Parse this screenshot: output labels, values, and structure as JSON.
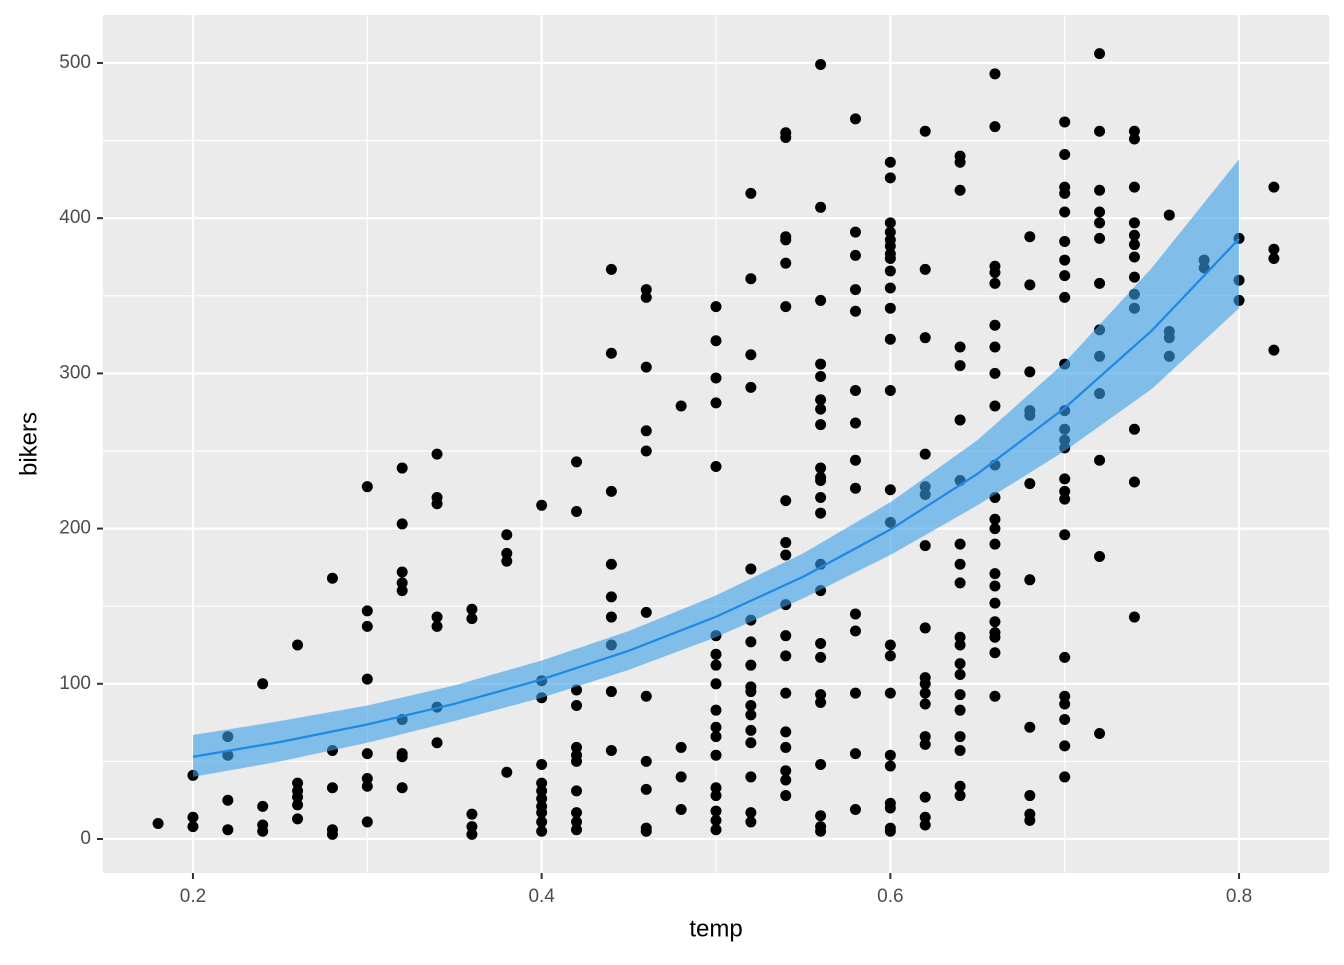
{
  "chart_data": {
    "type": "scatter",
    "x_label": "temp",
    "y_label": "bikers",
    "xlim": [
      0.1484,
      0.8516
    ],
    "ylim": [
      -21.9,
      530.9
    ],
    "xticks": [
      0.2,
      0.4,
      0.6,
      0.8
    ],
    "yticks": [
      0,
      100,
      200,
      300,
      400,
      500
    ],
    "grid": true,
    "point_color": "#000000",
    "x": [
      0.18,
      0.2,
      0.2,
      0.2,
      0.22,
      0.22,
      0.22,
      0.22,
      0.24,
      0.24,
      0.24,
      0.24,
      0.26,
      0.26,
      0.26,
      0.26,
      0.26,
      0.26,
      0.28,
      0.28,
      0.28,
      0.28,
      0.28,
      0.3,
      0.3,
      0.3,
      0.3,
      0.3,
      0.3,
      0.3,
      0.3,
      0.32,
      0.32,
      0.32,
      0.32,
      0.32,
      0.32,
      0.32,
      0.32,
      0.32,
      0.34,
      0.34,
      0.34,
      0.34,
      0.34,
      0.34,
      0.34,
      0.36,
      0.36,
      0.36,
      0.36,
      0.36,
      0.38,
      0.38,
      0.38,
      0.38,
      0.4,
      0.4,
      0.4,
      0.4,
      0.4,
      0.4,
      0.4,
      0.4,
      0.4,
      0.4,
      0.4,
      0.42,
      0.42,
      0.42,
      0.42,
      0.42,
      0.42,
      0.42,
      0.42,
      0.42,
      0.42,
      0.42,
      0.44,
      0.44,
      0.44,
      0.44,
      0.44,
      0.44,
      0.44,
      0.44,
      0.44,
      0.46,
      0.46,
      0.46,
      0.46,
      0.46,
      0.46,
      0.46,
      0.46,
      0.46,
      0.46,
      0.46,
      0.48,
      0.48,
      0.48,
      0.48,
      0.5,
      0.5,
      0.5,
      0.5,
      0.5,
      0.5,
      0.5,
      0.5,
      0.5,
      0.5,
      0.5,
      0.5,
      0.5,
      0.5,
      0.5,
      0.5,
      0.5,
      0.5,
      0.52,
      0.52,
      0.52,
      0.52,
      0.52,
      0.52,
      0.52,
      0.52,
      0.52,
      0.52,
      0.52,
      0.52,
      0.52,
      0.52,
      0.52,
      0.52,
      0.52,
      0.54,
      0.54,
      0.54,
      0.54,
      0.54,
      0.54,
      0.54,
      0.54,
      0.54,
      0.54,
      0.54,
      0.54,
      0.54,
      0.54,
      0.54,
      0.54,
      0.54,
      0.54,
      0.56,
      0.56,
      0.56,
      0.56,
      0.56,
      0.56,
      0.56,
      0.56,
      0.56,
      0.56,
      0.56,
      0.56,
      0.56,
      0.56,
      0.56,
      0.56,
      0.56,
      0.56,
      0.56,
      0.56,
      0.56,
      0.56,
      0.56,
      0.58,
      0.58,
      0.58,
      0.58,
      0.58,
      0.58,
      0.58,
      0.58,
      0.58,
      0.58,
      0.58,
      0.58,
      0.58,
      0.58,
      0.6,
      0.6,
      0.6,
      0.6,
      0.6,
      0.6,
      0.6,
      0.6,
      0.6,
      0.6,
      0.6,
      0.6,
      0.6,
      0.6,
      0.6,
      0.6,
      0.6,
      0.6,
      0.6,
      0.6,
      0.6,
      0.6,
      0.6,
      0.6,
      0.62,
      0.62,
      0.62,
      0.62,
      0.62,
      0.62,
      0.62,
      0.62,
      0.62,
      0.62,
      0.62,
      0.62,
      0.62,
      0.62,
      0.62,
      0.62,
      0.62,
      0.64,
      0.64,
      0.64,
      0.64,
      0.64,
      0.64,
      0.64,
      0.64,
      0.64,
      0.64,
      0.64,
      0.64,
      0.64,
      0.64,
      0.64,
      0.64,
      0.64,
      0.64,
      0.64,
      0.64,
      0.66,
      0.66,
      0.66,
      0.66,
      0.66,
      0.66,
      0.66,
      0.66,
      0.66,
      0.66,
      0.66,
      0.66,
      0.66,
      0.66,
      0.66,
      0.66,
      0.66,
      0.66,
      0.66,
      0.66,
      0.66,
      0.66,
      0.68,
      0.68,
      0.68,
      0.68,
      0.68,
      0.68,
      0.68,
      0.68,
      0.68,
      0.68,
      0.68,
      0.7,
      0.7,
      0.7,
      0.7,
      0.7,
      0.7,
      0.7,
      0.7,
      0.7,
      0.7,
      0.7,
      0.7,
      0.7,
      0.7,
      0.7,
      0.7,
      0.7,
      0.7,
      0.7,
      0.7,
      0.7,
      0.7,
      0.7,
      0.7,
      0.72,
      0.72,
      0.72,
      0.72,
      0.72,
      0.72,
      0.72,
      0.72,
      0.72,
      0.72,
      0.72,
      0.72,
      0.72,
      0.74,
      0.74,
      0.74,
      0.74,
      0.74,
      0.74,
      0.74,
      0.74,
      0.74,
      0.74,
      0.74,
      0.74,
      0.74,
      0.76,
      0.76,
      0.76,
      0.76,
      0.78,
      0.78,
      0.8,
      0.8,
      0.8,
      0.82,
      0.82,
      0.82,
      0.82
    ],
    "values": [
      10,
      41,
      14,
      8,
      66,
      54,
      25,
      6,
      100,
      21,
      9,
      5,
      125,
      36,
      31,
      27,
      22,
      13,
      168,
      57,
      33,
      6,
      3,
      227,
      147,
      137,
      103,
      55,
      39,
      34,
      11,
      239,
      203,
      172,
      165,
      160,
      77,
      55,
      53,
      33,
      248,
      220,
      216,
      143,
      137,
      85,
      62,
      148,
      142,
      16,
      8,
      3,
      196,
      184,
      179,
      43,
      215,
      102,
      91,
      48,
      36,
      31,
      26,
      21,
      17,
      11,
      5,
      243,
      211,
      96,
      86,
      59,
      54,
      50,
      31,
      17,
      11,
      6,
      367,
      313,
      224,
      177,
      156,
      143,
      125,
      95,
      57,
      354,
      349,
      304,
      263,
      250,
      146,
      92,
      50,
      32,
      7,
      5,
      279,
      59,
      40,
      19,
      343,
      321,
      297,
      281,
      240,
      131,
      119,
      112,
      100,
      83,
      72,
      66,
      54,
      33,
      28,
      18,
      12,
      6,
      416,
      361,
      312,
      291,
      174,
      141,
      127,
      112,
      98,
      95,
      86,
      80,
      70,
      62,
      40,
      17,
      11,
      455,
      452,
      388,
      386,
      371,
      343,
      218,
      191,
      183,
      151,
      131,
      118,
      94,
      69,
      59,
      44,
      38,
      28,
      499,
      407,
      347,
      306,
      298,
      283,
      277,
      267,
      239,
      233,
      231,
      220,
      210,
      177,
      160,
      126,
      117,
      93,
      88,
      48,
      15,
      8,
      5,
      464,
      391,
      376,
      354,
      340,
      289,
      268,
      244,
      226,
      145,
      134,
      94,
      55,
      19,
      436,
      426,
      397,
      391,
      386,
      382,
      377,
      374,
      366,
      355,
      342,
      322,
      289,
      225,
      204,
      125,
      118,
      94,
      54,
      47,
      23,
      20,
      7,
      5,
      456,
      367,
      323,
      248,
      227,
      222,
      189,
      136,
      104,
      100,
      94,
      87,
      66,
      61,
      27,
      14,
      9,
      440,
      436,
      418,
      317,
      305,
      270,
      231,
      190,
      177,
      165,
      130,
      125,
      113,
      106,
      93,
      83,
      66,
      57,
      34,
      28,
      493,
      459,
      369,
      365,
      358,
      331,
      317,
      300,
      279,
      241,
      220,
      206,
      200,
      190,
      171,
      163,
      152,
      140,
      133,
      130,
      120,
      92,
      388,
      357,
      301,
      276,
      273,
      229,
      167,
      72,
      28,
      16,
      12,
      462,
      441,
      420,
      416,
      404,
      385,
      373,
      363,
      349,
      306,
      276,
      264,
      257,
      252,
      232,
      224,
      219,
      196,
      117,
      92,
      87,
      77,
      60,
      40,
      506,
      456,
      418,
      404,
      397,
      387,
      358,
      328,
      311,
      287,
      244,
      182,
      68,
      456,
      451,
      420,
      397,
      389,
      383,
      375,
      362,
      351,
      342,
      264,
      230,
      143,
      402,
      327,
      323,
      311,
      373,
      368,
      387,
      360,
      347,
      420,
      380,
      374,
      315
    ],
    "fit": {
      "line_color": "#1e88e5",
      "band_color": "#3a9ee8",
      "x": [
        0.2,
        0.25,
        0.3,
        0.35,
        0.4,
        0.45,
        0.5,
        0.55,
        0.6,
        0.65,
        0.7,
        0.75,
        0.8
      ],
      "values": [
        53,
        62.5,
        73.8,
        87.1,
        102.8,
        121.3,
        143.2,
        169.0,
        199.4,
        235.3,
        277.7,
        327.6,
        386.7
      ],
      "lower": [
        40,
        50,
        62,
        76,
        91,
        109,
        130,
        155,
        183,
        215,
        250,
        290,
        342
      ],
      "upper": [
        67,
        76,
        86,
        99,
        115,
        134,
        157,
        184,
        217,
        257,
        307,
        368,
        438
      ]
    }
  }
}
